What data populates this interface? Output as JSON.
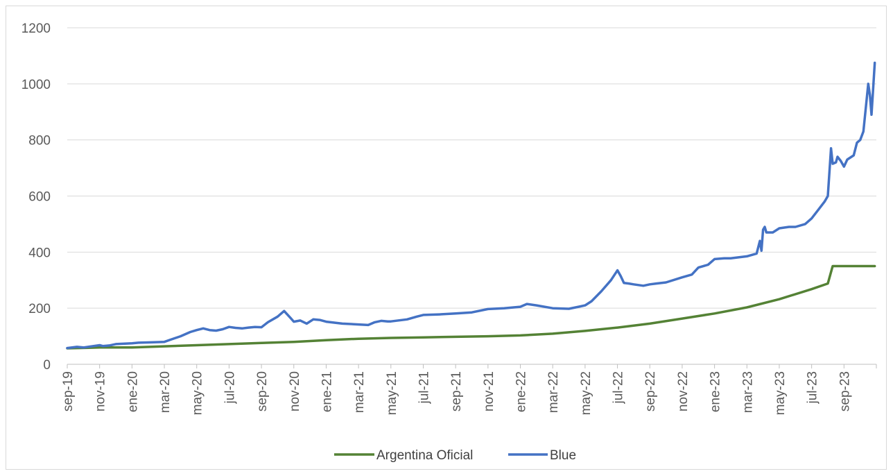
{
  "chart_data": {
    "type": "line",
    "title": "",
    "xlabel": "",
    "ylabel": "",
    "ylim": [
      0,
      1200
    ],
    "yticks": [
      0,
      200,
      400,
      600,
      800,
      1000,
      1200
    ],
    "categories": [
      "sep-19",
      "nov-19",
      "ene-20",
      "mar-20",
      "may-20",
      "jul-20",
      "sep-20",
      "nov-20",
      "ene-21",
      "mar-21",
      "may-21",
      "jul-21",
      "sep-21",
      "nov-21",
      "ene-22",
      "mar-22",
      "may-22",
      "jul-22",
      "sep-22",
      "nov-22",
      "ene-23",
      "mar-23",
      "may-23",
      "jul-23",
      "sep-23"
    ],
    "grid": "horizontal",
    "legend": "bottom-center",
    "series": [
      {
        "name": "Argentina Oficial",
        "color": "#548235",
        "x": [
          0,
          1,
          2,
          3,
          4,
          5,
          6,
          7,
          8,
          9,
          10,
          11,
          12,
          13,
          14,
          15,
          16,
          17,
          18,
          19,
          20,
          21,
          22,
          23,
          23.5,
          23.65,
          24,
          24.5,
          24.95
        ],
        "values": [
          57,
          60,
          60,
          64,
          68,
          72,
          76,
          80,
          86,
          91,
          94,
          96,
          98,
          100,
          103,
          109,
          119,
          131,
          145,
          163,
          181,
          203,
          232,
          268,
          288,
          350,
          350,
          350,
          350
        ]
      },
      {
        "name": "Blue",
        "color": "#4472C4",
        "x": [
          0,
          0.3,
          0.5,
          1,
          1.1,
          1.3,
          1.5,
          2,
          2.2,
          2.5,
          3,
          3.2,
          3.5,
          3.8,
          4,
          4.2,
          4.4,
          4.6,
          4.8,
          5,
          5.2,
          5.4,
          5.6,
          5.8,
          6,
          6.2,
          6.5,
          6.7,
          6.9,
          7,
          7.2,
          7.4,
          7.6,
          7.8,
          8,
          8.5,
          9,
          9.3,
          9.5,
          9.7,
          9.9,
          10,
          10.5,
          10.8,
          11,
          11.5,
          12,
          12.5,
          13,
          13.5,
          14,
          14.2,
          14.5,
          15,
          15.5,
          15.8,
          16,
          16.2,
          16.5,
          16.8,
          17,
          17.1,
          17.2,
          17.35,
          17.5,
          17.8,
          18,
          18.2,
          18.5,
          19,
          19.3,
          19.5,
          19.8,
          20,
          20.3,
          20.5,
          21,
          21.3,
          21.4,
          21.45,
          21.5,
          21.55,
          21.6,
          21.8,
          22,
          22.3,
          22.5,
          22.8,
          23,
          23.2,
          23.4,
          23.5,
          23.6,
          23.65,
          23.75,
          23.8,
          23.9,
          24,
          24.1,
          24.3,
          24.4,
          24.5,
          24.6,
          24.75,
          24.8,
          24.85,
          24.9,
          24.95
        ],
        "values": [
          58,
          62,
          60,
          68,
          65,
          67,
          72,
          75,
          77,
          78,
          80,
          88,
          100,
          115,
          122,
          128,
          122,
          120,
          125,
          133,
          130,
          128,
          131,
          133,
          132,
          150,
          170,
          190,
          165,
          152,
          156,
          145,
          160,
          158,
          152,
          145,
          142,
          140,
          150,
          155,
          153,
          153,
          160,
          170,
          176,
          178,
          181,
          185,
          197,
          200,
          205,
          215,
          210,
          200,
          198,
          205,
          210,
          225,
          260,
          300,
          335,
          315,
          290,
          288,
          285,
          280,
          285,
          288,
          292,
          310,
          320,
          345,
          355,
          375,
          378,
          378,
          385,
          395,
          440,
          405,
          480,
          490,
          470,
          470,
          485,
          490,
          490,
          500,
          520,
          550,
          580,
          600,
          770,
          715,
          720,
          740,
          725,
          705,
          730,
          745,
          790,
          800,
          830,
          1000,
          960,
          890,
          980,
          1075
        ]
      }
    ]
  }
}
